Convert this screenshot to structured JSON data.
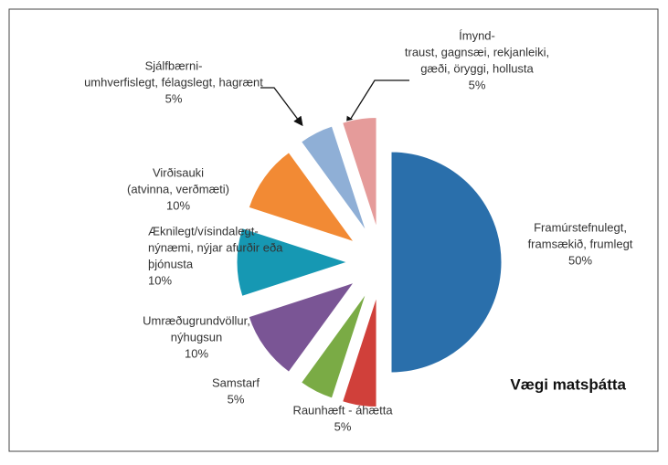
{
  "chart_data": {
    "type": "pie",
    "title": "Vægi matsþátta",
    "categories": [
      [
        "Framúrstefnulegt,",
        "framsækið, frumlegt"
      ],
      [
        "Raunhæft - áhætta"
      ],
      [
        "Samstarf"
      ],
      [
        "Umræðugrundvöllur,",
        "nýhugsun"
      ],
      [
        "Æknilegt/vísindalegt-",
        "nýnæmi, nýjar afurðir eða",
        "þjónusta"
      ],
      [
        "Virðisauki",
        "(atvinna, verðmæti)"
      ],
      [
        "Sjálfbærni-",
        "umhverfislegt, félagslegt, hagrænt"
      ],
      [
        "Ímynd-",
        "traust, gagnsæi, rekjanleiki,",
        "gæði, öryggi, hollusta"
      ]
    ],
    "values": [
      50,
      5,
      5,
      10,
      10,
      10,
      5,
      5
    ],
    "value_labels": [
      "50%",
      "5%",
      "5%",
      "10%",
      "10%",
      "10%",
      "5%",
      "5%"
    ],
    "colors": [
      "#2a6fab",
      "#d0403a",
      "#7aab45",
      "#7a5595",
      "#1698b3",
      "#f28a34",
      "#8fafd6",
      "#e59b9a"
    ]
  }
}
